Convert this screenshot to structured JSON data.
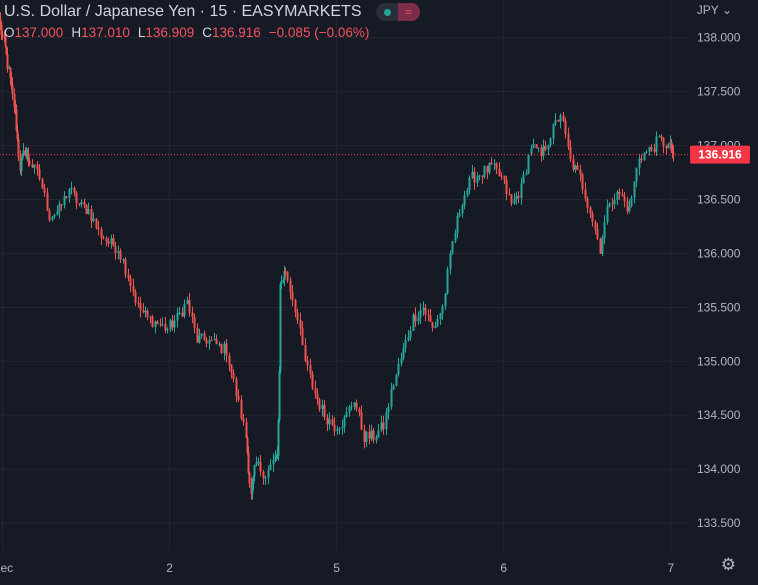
{
  "header": {
    "title": "U.S. Dollar / Japanese Yen · 15 · EASYMARKETS",
    "ohlc": {
      "o_label": "O",
      "o_value": "137.000",
      "h_label": "H",
      "h_value": "137.010",
      "l_label": "L",
      "l_value": "136.909",
      "c_label": "C",
      "c_value": "136.916",
      "change": "−0.085 (−0.06%)"
    }
  },
  "axis": {
    "currency_label": "JPY"
  },
  "icons": {
    "settings": "gear-icon",
    "currency_dropdown": "chevron-down-icon",
    "status": "wave-icon"
  },
  "colors": {
    "background": "#161a25",
    "up": "#26a69a",
    "down": "#ef5350",
    "grid": "#232732",
    "text": "#b2b5be",
    "price_badge": "#f23645"
  },
  "chart_data": {
    "type": "candlestick",
    "symbol": "USDJPY",
    "interval": "15",
    "ylim": [
      133.25,
      138.35
    ],
    "y_ticks": [
      "133.500",
      "134.000",
      "134.500",
      "135.000",
      "135.500",
      "136.000",
      "136.500",
      "137.000",
      "137.500",
      "138.000"
    ],
    "x_ticks": [
      "Dec",
      "2",
      "5",
      "6",
      "7"
    ],
    "x_tick_positions": [
      0.5,
      34.5,
      68.5,
      102.5,
      136.5
    ],
    "x_range": [
      0,
      140
    ],
    "last_price": "136.916",
    "last_price_value": 136.916,
    "keypoints": [
      [
        0,
        138.1
      ],
      [
        1,
        137.9
      ],
      [
        2,
        137.6
      ],
      [
        3,
        137.3
      ],
      [
        4,
        136.8
      ],
      [
        5,
        136.95
      ],
      [
        6,
        136.85
      ],
      [
        8,
        136.7
      ],
      [
        10,
        136.35
      ],
      [
        12,
        136.4
      ],
      [
        14,
        136.6
      ],
      [
        16,
        136.45
      ],
      [
        18,
        136.4
      ],
      [
        20,
        136.2
      ],
      [
        22,
        136.1
      ],
      [
        24,
        136.05
      ],
      [
        26,
        135.8
      ],
      [
        28,
        135.5
      ],
      [
        30,
        135.4
      ],
      [
        32,
        135.35
      ],
      [
        34,
        135.3
      ],
      [
        36,
        135.4
      ],
      [
        38,
        135.55
      ],
      [
        40,
        135.2
      ],
      [
        42,
        135.2
      ],
      [
        44,
        135.15
      ],
      [
        46,
        135.1
      ],
      [
        48,
        134.7
      ],
      [
        50,
        134.3
      ],
      [
        51,
        133.75
      ],
      [
        52,
        134.05
      ],
      [
        54,
        133.95
      ],
      [
        56,
        134.1
      ],
      [
        56.5,
        134.1
      ],
      [
        57,
        135.7
      ],
      [
        58,
        135.85
      ],
      [
        60,
        135.5
      ],
      [
        62,
        135.0
      ],
      [
        64,
        134.7
      ],
      [
        66,
        134.5
      ],
      [
        68,
        134.4
      ],
      [
        70,
        134.45
      ],
      [
        72,
        134.65
      ],
      [
        74,
        134.3
      ],
      [
        76,
        134.3
      ],
      [
        78,
        134.4
      ],
      [
        80,
        134.8
      ],
      [
        82,
        135.1
      ],
      [
        84,
        135.4
      ],
      [
        86,
        135.5
      ],
      [
        88,
        135.3
      ],
      [
        90,
        135.5
      ],
      [
        92,
        136.1
      ],
      [
        94,
        136.5
      ],
      [
        96,
        136.7
      ],
      [
        98,
        136.75
      ],
      [
        100,
        136.8
      ],
      [
        102,
        136.7
      ],
      [
        104,
        136.45
      ],
      [
        106,
        136.6
      ],
      [
        108,
        137.0
      ],
      [
        110,
        136.9
      ],
      [
        112,
        137.1
      ],
      [
        114,
        137.3
      ],
      [
        116,
        136.85
      ],
      [
        118,
        136.7
      ],
      [
        120,
        136.4
      ],
      [
        122,
        136.05
      ],
      [
        124,
        136.5
      ],
      [
        126,
        136.55
      ],
      [
        128,
        136.4
      ],
      [
        130,
        136.9
      ],
      [
        132,
        136.95
      ],
      [
        134,
        137.05
      ],
      [
        136,
        137.0
      ],
      [
        137,
        136.92
      ]
    ]
  }
}
